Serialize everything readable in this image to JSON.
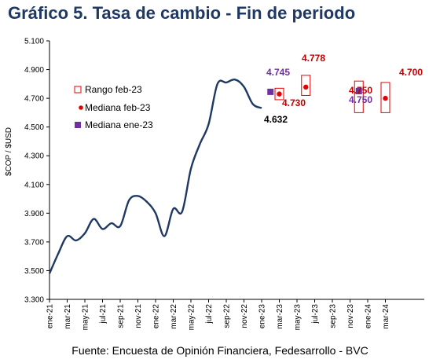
{
  "title": "Gráfico 5. Tasa de cambio - Fin de periodo",
  "source": "Fuente: Encuesta de Opinión Financiera, Fedesarrollo - BVC",
  "colors": {
    "title": "#1f3864",
    "line": "#1f3864",
    "range": "#e60000",
    "median_feb": "#e60000",
    "median_jan": "#7030a0",
    "label_feb": "#c00000",
    "label_jan": "#7030a0"
  },
  "chart_data": {
    "type": "line",
    "ylabel": "$COP / $USD",
    "ylim": [
      3300,
      5100
    ],
    "yticks": [
      "3.300",
      "3.500",
      "3.700",
      "3.900",
      "4.100",
      "4.300",
      "4.500",
      "4.700",
      "4.900",
      "5.100"
    ],
    "xticks": [
      "ene-21",
      "mar-21",
      "may-21",
      "jul-21",
      "sep-21",
      "nov-21",
      "ene-22",
      "mar-22",
      "may-22",
      "jul-22",
      "sep-22",
      "nov-22",
      "ene-23",
      "mar-23",
      "may-23",
      "jul-23",
      "sep-23",
      "nov-23",
      "ene-24",
      "mar-24"
    ],
    "legend": {
      "range": "Rango feb-23",
      "median_feb": "Mediana feb-23",
      "median_jan": "Mediana ene-23"
    },
    "series": [
      {
        "name": "Tasa de cambio",
        "x": [
          "2021-01",
          "2021-02",
          "2021-03",
          "2021-04",
          "2021-05",
          "2021-06",
          "2021-07",
          "2021-08",
          "2021-09",
          "2021-10",
          "2021-11",
          "2021-12",
          "2022-01",
          "2022-02",
          "2022-03",
          "2022-04",
          "2022-05",
          "2022-06",
          "2022-07",
          "2022-08",
          "2022-09",
          "2022-10",
          "2022-11",
          "2022-12",
          "2023-01"
        ],
        "values": [
          3480,
          3620,
          3740,
          3710,
          3760,
          3860,
          3790,
          3830,
          3810,
          3990,
          4020,
          3980,
          3900,
          3740,
          3930,
          3910,
          4210,
          4380,
          4520,
          4800,
          4810,
          4830,
          4780,
          4660,
          4632
        ]
      }
    ],
    "forecast": {
      "median_feb": [
        {
          "period": "mar-23",
          "value": 4730,
          "label": "4.730"
        },
        {
          "period": "jun-23",
          "value": 4778,
          "label": "4.778"
        },
        {
          "period": "dic-23",
          "value": 4750,
          "label": "4.750"
        },
        {
          "period": "mar-24",
          "value": 4700,
          "label": "4.700"
        }
      ],
      "median_jan": [
        {
          "period": "feb-23",
          "value": 4745,
          "label": "4.745"
        },
        {
          "period": "dic-23",
          "value": 4750,
          "label": "4.750"
        }
      ],
      "range_feb": [
        {
          "period": "mar-23",
          "low": 4690,
          "high": 4770
        },
        {
          "period": "jun-23",
          "low": 4720,
          "high": 4860
        },
        {
          "period": "dic-23",
          "low": 4600,
          "high": 4820
        },
        {
          "period": "mar-24",
          "low": 4600,
          "high": 4810
        }
      ],
      "last_value_label": "4.632"
    }
  }
}
